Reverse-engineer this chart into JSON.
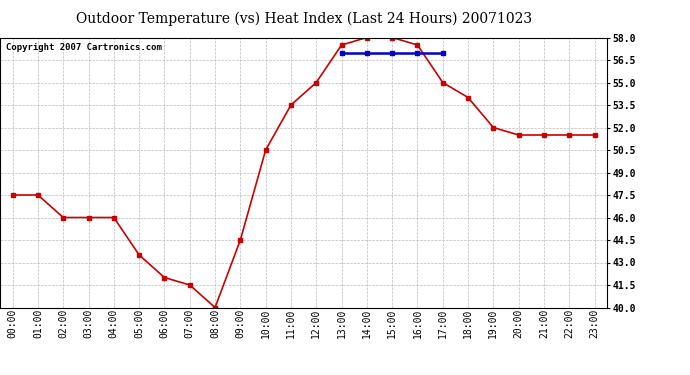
{
  "title": "Outdoor Temperature (vs) Heat Index (Last 24 Hours) 20071023",
  "copyright": "Copyright 2007 Cartronics.com",
  "hours": [
    "00:00",
    "01:00",
    "02:00",
    "03:00",
    "04:00",
    "05:00",
    "06:00",
    "07:00",
    "08:00",
    "09:00",
    "10:00",
    "11:00",
    "12:00",
    "13:00",
    "14:00",
    "15:00",
    "16:00",
    "17:00",
    "18:00",
    "19:00",
    "20:00",
    "21:00",
    "22:00",
    "23:00"
  ],
  "temp_values": [
    47.5,
    47.5,
    46.0,
    46.0,
    46.0,
    43.5,
    42.0,
    41.5,
    40.0,
    44.5,
    50.5,
    53.5,
    55.0,
    57.5,
    58.0,
    58.0,
    57.5,
    55.0,
    54.0,
    52.0,
    51.5,
    51.5,
    51.5,
    51.5
  ],
  "heat_values": [
    null,
    null,
    null,
    null,
    null,
    null,
    null,
    null,
    null,
    null,
    null,
    null,
    null,
    57.0,
    57.0,
    57.0,
    57.0,
    57.0,
    null,
    null,
    null,
    null,
    null,
    null
  ],
  "ylim": [
    40.0,
    58.0
  ],
  "yticks": [
    40.0,
    41.5,
    43.0,
    44.5,
    46.0,
    47.5,
    49.0,
    50.5,
    52.0,
    53.5,
    55.0,
    56.5,
    58.0
  ],
  "temp_color": "#cc0000",
  "heat_color": "#0000cc",
  "marker": "s",
  "marker_size": 3,
  "bg_color": "#ffffff",
  "grid_color": "#bbbbbb",
  "title_fontsize": 10,
  "copyright_fontsize": 6.5,
  "tick_fontsize": 7
}
